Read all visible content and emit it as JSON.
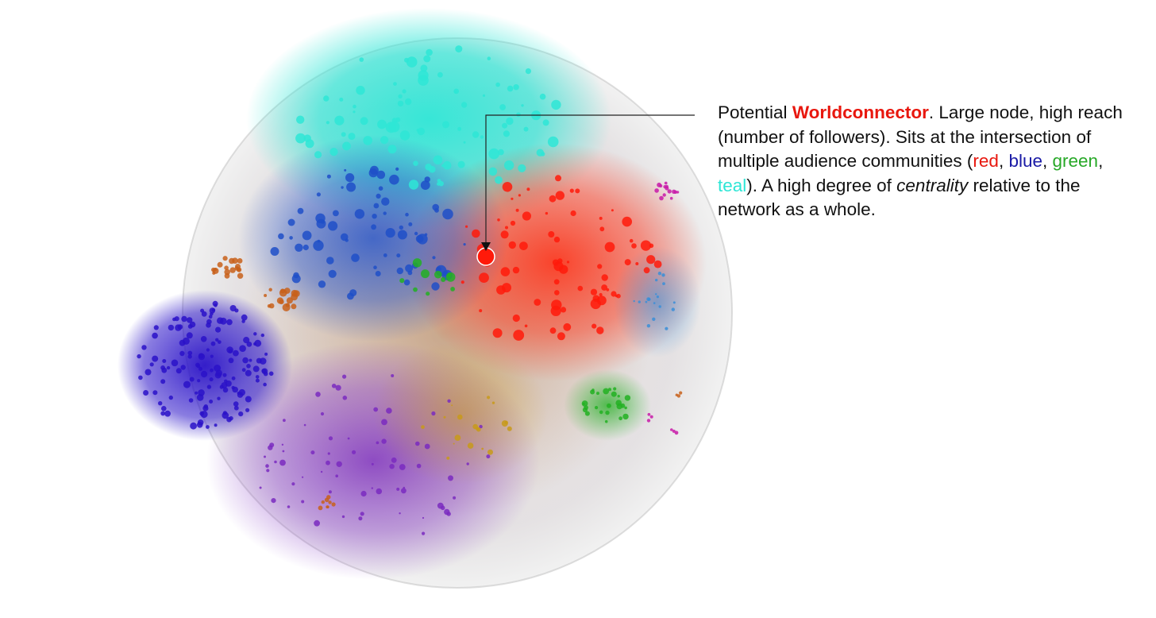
{
  "annotation": {
    "prefix": "Potential ",
    "highlight": "Worldconnector",
    "sentence1_rest": ". Large node, high reach (number of followers). Sits at the intersection of multiple audience communities (",
    "communities": [
      "red",
      "blue",
      "green",
      "teal"
    ],
    "sentence2_rest": "). A high degree of ",
    "emphasis": "centrality",
    "ending": " relative to the network as a whole.",
    "colors": {
      "red": "#e8170e",
      "blue": "#1a1aa6",
      "green": "#27a827",
      "teal": "#2ee6d6",
      "text": "#111111"
    }
  },
  "network": {
    "communities": [
      {
        "name": "teal",
        "color": "#2ee6d6"
      },
      {
        "name": "red",
        "color": "#ff1a0a"
      },
      {
        "name": "blue",
        "color": "#1f4fc8"
      },
      {
        "name": "green",
        "color": "#22b022"
      },
      {
        "name": "indigo",
        "color": "#2a12c8"
      },
      {
        "name": "purple",
        "color": "#7a2ac0"
      },
      {
        "name": "orange",
        "color": "#c8601a"
      },
      {
        "name": "magenta",
        "color": "#c81aa8"
      },
      {
        "name": "lightblue",
        "color": "#3a8ed8"
      },
      {
        "name": "gold",
        "color": "#c89a1a"
      }
    ]
  }
}
